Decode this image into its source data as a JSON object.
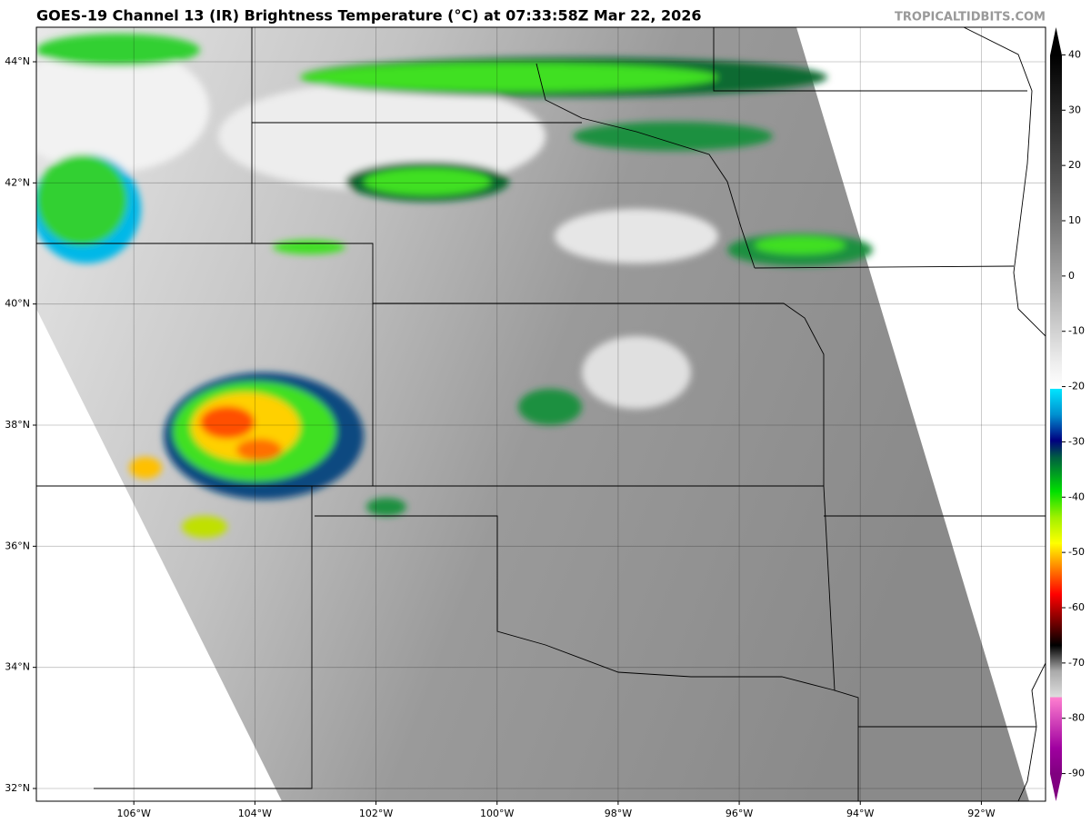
{
  "chart_data": {
    "type": "map",
    "title": "GOES-19 Channel 13 (IR) Brightness Temperature (°C) at 07:33:58Z Mar 22, 2026",
    "credit": "TROPICALTIDBITS.COM",
    "xlim": [
      -107.61,
      -90.94
    ],
    "ylim": [
      31.79,
      44.57
    ],
    "xticks": [
      {
        "value": -106,
        "label": "106°W"
      },
      {
        "value": -104,
        "label": "104°W"
      },
      {
        "value": -102,
        "label": "102°W"
      },
      {
        "value": -100,
        "label": "100°W"
      },
      {
        "value": -98,
        "label": "98°W"
      },
      {
        "value": -96,
        "label": "96°W"
      },
      {
        "value": -94,
        "label": "94°W"
      },
      {
        "value": -92,
        "label": "92°W"
      }
    ],
    "yticks": [
      {
        "value": 32,
        "label": "32°N"
      },
      {
        "value": 34,
        "label": "34°N"
      },
      {
        "value": 36,
        "label": "36°N"
      },
      {
        "value": 38,
        "label": "38°N"
      },
      {
        "value": 40,
        "label": "40°N"
      },
      {
        "value": 42,
        "label": "42°N"
      },
      {
        "value": 44,
        "label": "44°N"
      }
    ],
    "grid": true,
    "colorbar": {
      "lim": [
        -95,
        45
      ],
      "ticks": [
        40,
        30,
        20,
        10,
        0,
        -10,
        -20,
        -30,
        -40,
        -50,
        -60,
        -70,
        -80,
        -90
      ]
    }
  }
}
